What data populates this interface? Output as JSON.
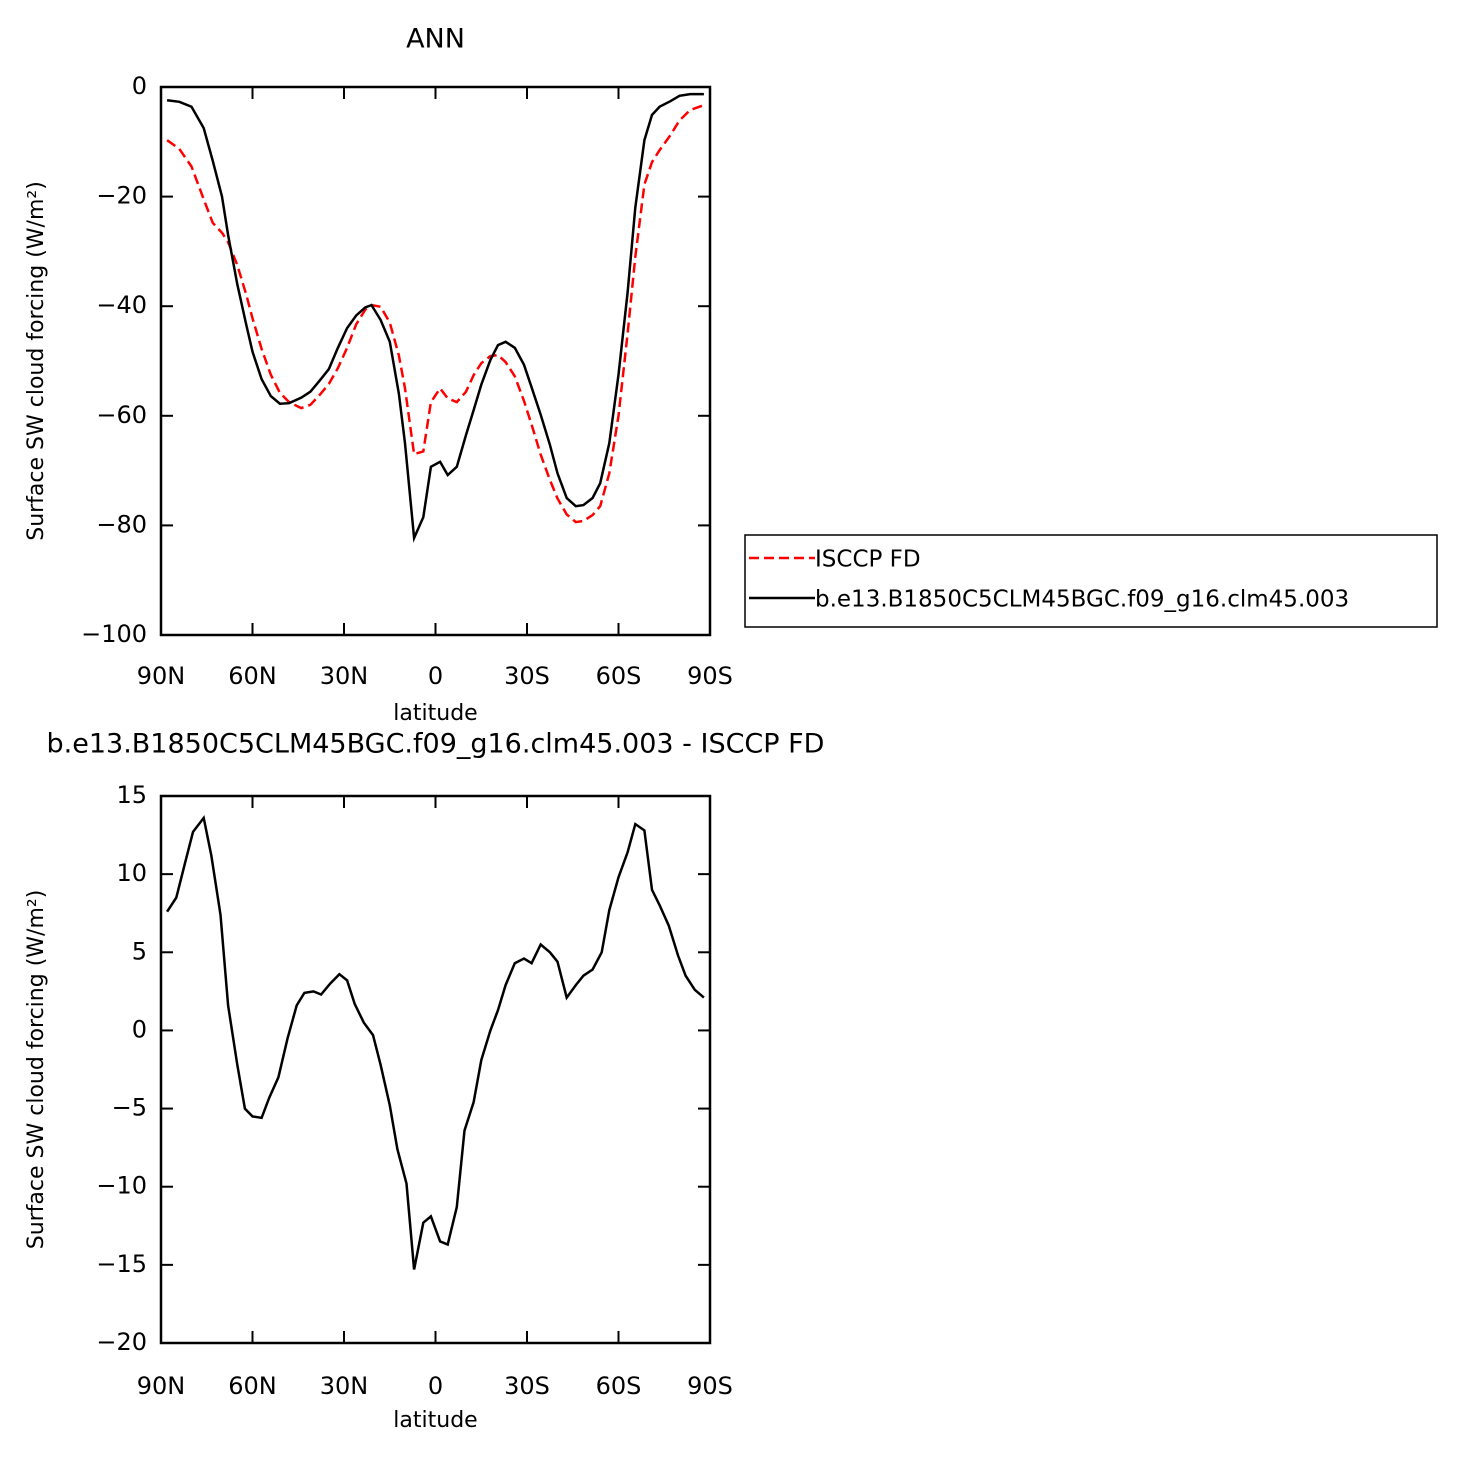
{
  "chart_data": [
    {
      "type": "line",
      "title": "ANN",
      "xlabel": "latitude",
      "ylabel": "Surface SW cloud forcing (W/m²)",
      "xlim": [
        90,
        -90
      ],
      "ylim": [
        -100,
        0
      ],
      "xticks": [
        {
          "value": 90,
          "label": "90N"
        },
        {
          "value": 60,
          "label": "60N"
        },
        {
          "value": 30,
          "label": "30N"
        },
        0,
        {
          "value": -30,
          "label": "30S"
        },
        {
          "value": -60,
          "label": "60S"
        },
        {
          "value": -90,
          "label": "90S"
        }
      ],
      "yticks": [
        {
          "value": -100,
          "label": "−100"
        },
        {
          "value": -80,
          "label": "−80"
        },
        {
          "value": -60,
          "label": "−60"
        },
        {
          "value": -40,
          "label": "−40"
        },
        {
          "value": -20,
          "label": "−20"
        },
        0
      ],
      "legend": "right",
      "x": [
        88,
        84,
        80,
        76,
        73,
        70,
        68,
        65,
        62,
        60,
        57,
        54,
        51,
        48,
        44,
        41,
        38,
        35,
        32,
        29,
        26,
        23,
        21,
        18,
        15,
        12,
        10,
        7,
        4,
        1.5,
        -1.5,
        -4,
        -7,
        -10,
        -12.5,
        -15,
        -18,
        -20.5,
        -23,
        -26,
        -29,
        -31.5,
        -34.5,
        -37.5,
        -40,
        -43,
        -46,
        -48.5,
        -51.5,
        -54,
        -57,
        -60,
        -63,
        -65.5,
        -68.5,
        -71,
        -73.5,
        -77,
        -80,
        -83.5,
        -88
      ],
      "series": [
        {
          "name": "ISCCP FD",
          "color": "#ff0000",
          "dash": "dashed",
          "values": [
            -9.7,
            -11.3,
            -14.5,
            -20.5,
            -24.8,
            -26.6,
            -28.3,
            -32.5,
            -38,
            -42.2,
            -47.8,
            -52.5,
            -55.8,
            -57.5,
            -58.6,
            -58,
            -56.2,
            -54.2,
            -51.3,
            -47.6,
            -43.3,
            -40.6,
            -39.8,
            -40.1,
            -43,
            -49,
            -55,
            -67,
            -66.5,
            -57.5,
            -55,
            -56.8,
            -57.5,
            -55.6,
            -52.6,
            -50.4,
            -49.1,
            -48.9,
            -50.2,
            -52.8,
            -57.3,
            -61.6,
            -67.1,
            -71.7,
            -75.1,
            -78,
            -79.4,
            -79.2,
            -78.1,
            -76.5,
            -70.5,
            -60,
            -45,
            -31,
            -17.8,
            -13.7,
            -11.5,
            -8.8,
            -6.1,
            -4.2,
            -3.3
          ]
        },
        {
          "name": "b.e13.B1850C5CLM45BGC.f09_g16.clm45.003",
          "color": "#000000",
          "dash": "solid",
          "values": [
            -2.4,
            -2.7,
            -3.6,
            -7.5,
            -13.5,
            -20,
            -27,
            -36,
            -43.5,
            -48.3,
            -53.3,
            -56.4,
            -57.8,
            -57.7,
            -56.7,
            -55.6,
            -53.6,
            -51.5,
            -47.6,
            -44,
            -41.7,
            -40.2,
            -39.8,
            -42.5,
            -46.5,
            -56,
            -65,
            -82.3,
            -78.5,
            -69.3,
            -68.4,
            -70.8,
            -69.3,
            -63.5,
            -59,
            -54.3,
            -49.8,
            -47.1,
            -46.5,
            -47.6,
            -50.7,
            -54.8,
            -59.8,
            -65.3,
            -70.5,
            -75,
            -76.5,
            -76.3,
            -75,
            -72.3,
            -65,
            -52.5,
            -37.5,
            -22,
            -9.7,
            -5.1,
            -3.6,
            -2.6,
            -1.6,
            -1.3,
            -1.3
          ]
        }
      ]
    },
    {
      "type": "line",
      "title": "b.e13.B1850C5CLM45BGC.f09_g16.clm45.003 - ISCCP FD",
      "xlabel": "latitude",
      "ylabel": "Surface SW cloud forcing (W/m²)",
      "xlim": [
        90,
        -90
      ],
      "ylim": [
        -20,
        15
      ],
      "xticks": [
        {
          "value": 90,
          "label": "90N"
        },
        {
          "value": 60,
          "label": "60N"
        },
        {
          "value": 30,
          "label": "30N"
        },
        0,
        {
          "value": -30,
          "label": "30S"
        },
        {
          "value": -60,
          "label": "60S"
        },
        {
          "value": -90,
          "label": "90S"
        }
      ],
      "yticks": [
        {
          "value": -20,
          "label": "−20"
        },
        {
          "value": -15,
          "label": "−15"
        },
        {
          "value": -10,
          "label": "−10"
        },
        {
          "value": -5,
          "label": "−5"
        },
        0,
        5,
        10,
        15
      ],
      "x": [
        88,
        85,
        82,
        79.5,
        76,
        73.5,
        70.5,
        68,
        65,
        62.5,
        60,
        57,
        54.5,
        51.5,
        48.5,
        45.5,
        43,
        40,
        37.5,
        34.5,
        31.5,
        29,
        26.5,
        23.5,
        20.5,
        18,
        15,
        12.5,
        9.5,
        7,
        4,
        1.5,
        -1.5,
        -4,
        -7,
        -9.5,
        -12.5,
        -15,
        -18,
        -20.5,
        -23,
        -26,
        -29,
        -31.5,
        -34.5,
        -37.5,
        -40,
        -43,
        -46,
        -48.5,
        -51.5,
        -54.5,
        -57,
        -60,
        -63,
        -65.5,
        -68.5,
        -71,
        -73.5,
        -76.5,
        -79.5,
        -82,
        -85,
        -88
      ],
      "series": [
        {
          "color": "#000000",
          "dash": "solid",
          "values": [
            7.6,
            8.5,
            10.8,
            12.7,
            13.6,
            11.2,
            7.4,
            1.6,
            -2.2,
            -5,
            -5.5,
            -5.6,
            -4.3,
            -3,
            -0.5,
            1.6,
            2.4,
            2.5,
            2.3,
            3,
            3.6,
            3.2,
            1.7,
            0.5,
            -0.3,
            -2.2,
            -4.8,
            -7.6,
            -9.8,
            -15.3,
            -12.3,
            -11.9,
            -13.5,
            -13.7,
            -11.3,
            -6.4,
            -4.6,
            -1.9,
            0,
            1.3,
            2.9,
            4.3,
            4.6,
            4.3,
            5.5,
            5,
            4.4,
            2.1,
            2.9,
            3.5,
            3.9,
            5,
            7.7,
            9.8,
            11.4,
            13.2,
            12.8,
            9,
            8,
            6.7,
            4.8,
            3.5,
            2.6,
            2.1
          ]
        }
      ]
    }
  ]
}
